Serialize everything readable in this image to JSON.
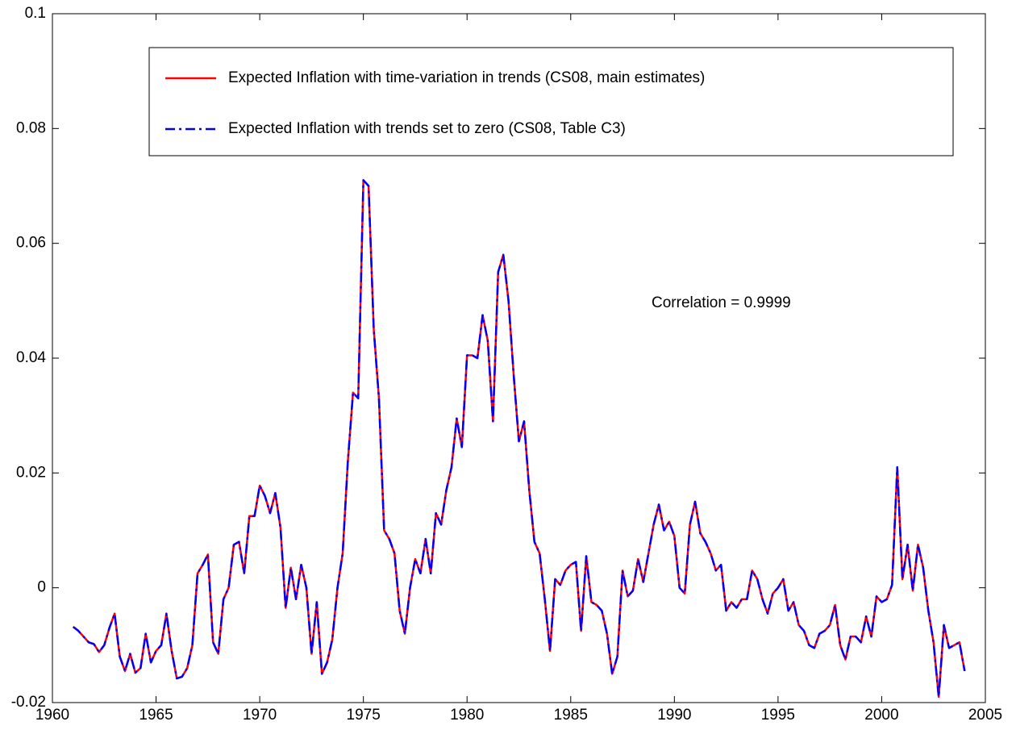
{
  "chart_data": {
    "type": "line",
    "annotation": "Correlation = 0.9999",
    "xlim": [
      1960,
      2005
    ],
    "xticks": [
      1960,
      1965,
      1970,
      1975,
      1980,
      1985,
      1990,
      1995,
      2000,
      2005
    ],
    "ylim": [
      -0.02,
      0.1
    ],
    "yticks": [
      -0.02,
      0,
      0.02,
      0.04,
      0.06,
      0.08,
      0.1
    ],
    "x": [
      1961,
      1961.25,
      1961.5,
      1961.75,
      1962,
      1962.25,
      1962.5,
      1962.75,
      1963,
      1963.25,
      1963.5,
      1963.75,
      1964,
      1964.25,
      1964.5,
      1964.75,
      1965,
      1965.25,
      1965.5,
      1965.75,
      1966,
      1966.25,
      1966.5,
      1966.75,
      1967,
      1967.25,
      1967.5,
      1967.75,
      1968,
      1968.25,
      1968.5,
      1968.75,
      1969,
      1969.25,
      1969.5,
      1969.75,
      1970,
      1970.25,
      1970.5,
      1970.75,
      1971,
      1971.25,
      1971.5,
      1971.75,
      1972,
      1972.25,
      1972.5,
      1972.75,
      1973,
      1973.25,
      1973.5,
      1973.75,
      1974,
      1974.25,
      1974.5,
      1974.75,
      1975,
      1975.25,
      1975.5,
      1975.75,
      1976,
      1976.25,
      1976.5,
      1976.75,
      1977,
      1977.25,
      1977.5,
      1977.75,
      1978,
      1978.25,
      1978.5,
      1978.75,
      1979,
      1979.25,
      1979.5,
      1979.75,
      1980,
      1980.25,
      1980.5,
      1980.75,
      1981,
      1981.25,
      1981.5,
      1981.75,
      1982,
      1982.25,
      1982.5,
      1982.75,
      1983,
      1983.25,
      1983.5,
      1983.75,
      1984,
      1984.25,
      1984.5,
      1984.75,
      1985,
      1985.25,
      1985.5,
      1985.75,
      1986,
      1986.25,
      1986.5,
      1986.75,
      1987,
      1987.25,
      1987.5,
      1987.75,
      1988,
      1988.25,
      1988.5,
      1988.75,
      1989,
      1989.25,
      1989.5,
      1989.75,
      1990,
      1990.25,
      1990.5,
      1990.75,
      1991,
      1991.25,
      1991.5,
      1991.75,
      1992,
      1992.25,
      1992.5,
      1992.75,
      1993,
      1993.25,
      1993.5,
      1993.75,
      1994,
      1994.25,
      1994.5,
      1994.75,
      1995,
      1995.25,
      1995.5,
      1995.75,
      1996,
      1996.25,
      1996.5,
      1996.75,
      1997,
      1997.25,
      1997.5,
      1997.75,
      1998,
      1998.25,
      1998.5,
      1998.75,
      1999,
      1999.25,
      1999.5,
      1999.75,
      2000,
      2000.25,
      2000.5,
      2000.75,
      2001,
      2001.25,
      2001.5,
      2001.75,
      2002,
      2002.25,
      2002.5,
      2002.75,
      2003,
      2003.25,
      2003.5,
      2003.75,
      2004
    ],
    "series": [
      {
        "name": "Expected Inflation with time-variation in trends (CS08, main estimates)",
        "color": "#ff0000",
        "style": "solid",
        "values": [
          -0.0068,
          -0.0075,
          -0.0085,
          -0.0095,
          -0.0098,
          -0.0112,
          -0.01,
          -0.007,
          -0.0045,
          -0.012,
          -0.0145,
          -0.0115,
          -0.0148,
          -0.014,
          -0.008,
          -0.013,
          -0.011,
          -0.01,
          -0.0045,
          -0.011,
          -0.0158,
          -0.0155,
          -0.014,
          -0.01,
          0.0025,
          0.004,
          0.0058,
          -0.0095,
          -0.0115,
          -0.002,
          0,
          0.0075,
          0.008,
          0.0025,
          0.0125,
          0.0125,
          0.0178,
          0.016,
          0.013,
          0.0165,
          0.0105,
          -0.0035,
          0.0035,
          -0.002,
          0.004,
          0,
          -0.0115,
          -0.0025,
          -0.015,
          -0.013,
          -0.009,
          0,
          0.006,
          0.022,
          0.034,
          0.033,
          0.071,
          0.07,
          0.045,
          0.033,
          0.01,
          0.0085,
          0.006,
          -0.004,
          -0.008,
          0,
          0.005,
          0.0025,
          0.0085,
          0.0025,
          0.013,
          0.011,
          0.017,
          0.021,
          0.0295,
          0.0245,
          0.0405,
          0.0405,
          0.04,
          0.0475,
          0.043,
          0.029,
          0.055,
          0.058,
          0.05,
          0.037,
          0.0255,
          0.029,
          0.017,
          0.008,
          0.006,
          -0.002,
          -0.011,
          0.0015,
          0.0005,
          0.003,
          0.004,
          0.0045,
          -0.0075,
          0.0055,
          -0.0025,
          -0.003,
          -0.004,
          -0.008,
          -0.015,
          -0.012,
          0.003,
          -0.0015,
          -0.0005,
          0.005,
          0.001,
          0.006,
          0.011,
          0.0145,
          0.01,
          0.0115,
          0.009,
          0,
          -0.001,
          0.011,
          0.015,
          0.0095,
          0.008,
          0.006,
          0.003,
          0.004,
          -0.004,
          -0.0025,
          -0.0035,
          -0.002,
          -0.002,
          0.003,
          0.0015,
          -0.002,
          -0.0045,
          -0.001,
          0,
          0.0015,
          -0.004,
          -0.0025,
          -0.0065,
          -0.0075,
          -0.01,
          -0.0105,
          -0.008,
          -0.0075,
          -0.0065,
          -0.003,
          -0.01,
          -0.0125,
          -0.0085,
          -0.0085,
          -0.0095,
          -0.005,
          -0.0085,
          -0.0015,
          -0.0025,
          -0.002,
          0.0005,
          0.021,
          0.0015,
          0.0075,
          -0.0005,
          0.0075,
          0.0035,
          -0.004,
          -0.0095,
          -0.019,
          -0.0065,
          -0.0105,
          -0.01,
          -0.0095,
          -0.0145
        ]
      },
      {
        "name": "Expected Inflation with trends set to zero (CS08, Table C3)",
        "color": "#0000ff",
        "style": "dashdot",
        "values": [
          -0.0068,
          -0.0075,
          -0.0085,
          -0.0095,
          -0.0098,
          -0.0112,
          -0.01,
          -0.007,
          -0.0045,
          -0.012,
          -0.0145,
          -0.0115,
          -0.0148,
          -0.014,
          -0.008,
          -0.013,
          -0.011,
          -0.01,
          -0.0045,
          -0.011,
          -0.0158,
          -0.0155,
          -0.014,
          -0.01,
          0.0025,
          0.004,
          0.0058,
          -0.0095,
          -0.0115,
          -0.002,
          0,
          0.0075,
          0.008,
          0.0025,
          0.0125,
          0.0125,
          0.0178,
          0.016,
          0.013,
          0.0165,
          0.0105,
          -0.0035,
          0.0035,
          -0.002,
          0.004,
          0,
          -0.0115,
          -0.0025,
          -0.015,
          -0.013,
          -0.009,
          0,
          0.006,
          0.022,
          0.034,
          0.033,
          0.071,
          0.07,
          0.045,
          0.033,
          0.01,
          0.0085,
          0.006,
          -0.004,
          -0.008,
          0,
          0.005,
          0.0025,
          0.0085,
          0.0025,
          0.013,
          0.011,
          0.017,
          0.021,
          0.0295,
          0.0245,
          0.0405,
          0.0405,
          0.04,
          0.0475,
          0.043,
          0.029,
          0.055,
          0.058,
          0.05,
          0.037,
          0.0255,
          0.029,
          0.017,
          0.008,
          0.006,
          -0.002,
          -0.011,
          0.0015,
          0.0005,
          0.003,
          0.004,
          0.0045,
          -0.0075,
          0.0055,
          -0.0025,
          -0.003,
          -0.004,
          -0.008,
          -0.015,
          -0.012,
          0.003,
          -0.0015,
          -0.0005,
          0.005,
          0.001,
          0.006,
          0.011,
          0.0145,
          0.01,
          0.0115,
          0.009,
          0,
          -0.001,
          0.011,
          0.015,
          0.0095,
          0.008,
          0.006,
          0.003,
          0.004,
          -0.004,
          -0.0025,
          -0.0035,
          -0.002,
          -0.002,
          0.003,
          0.0015,
          -0.002,
          -0.0045,
          -0.001,
          0,
          0.0015,
          -0.004,
          -0.0025,
          -0.0065,
          -0.0075,
          -0.01,
          -0.0105,
          -0.008,
          -0.0075,
          -0.0065,
          -0.003,
          -0.01,
          -0.0125,
          -0.0085,
          -0.0085,
          -0.0095,
          -0.005,
          -0.0085,
          -0.0015,
          -0.0025,
          -0.002,
          0.0005,
          0.021,
          0.0015,
          0.0075,
          -0.0005,
          0.0075,
          0.0035,
          -0.004,
          -0.0095,
          -0.019,
          -0.0065,
          -0.0105,
          -0.01,
          -0.0095,
          -0.0145
        ]
      }
    ]
  }
}
